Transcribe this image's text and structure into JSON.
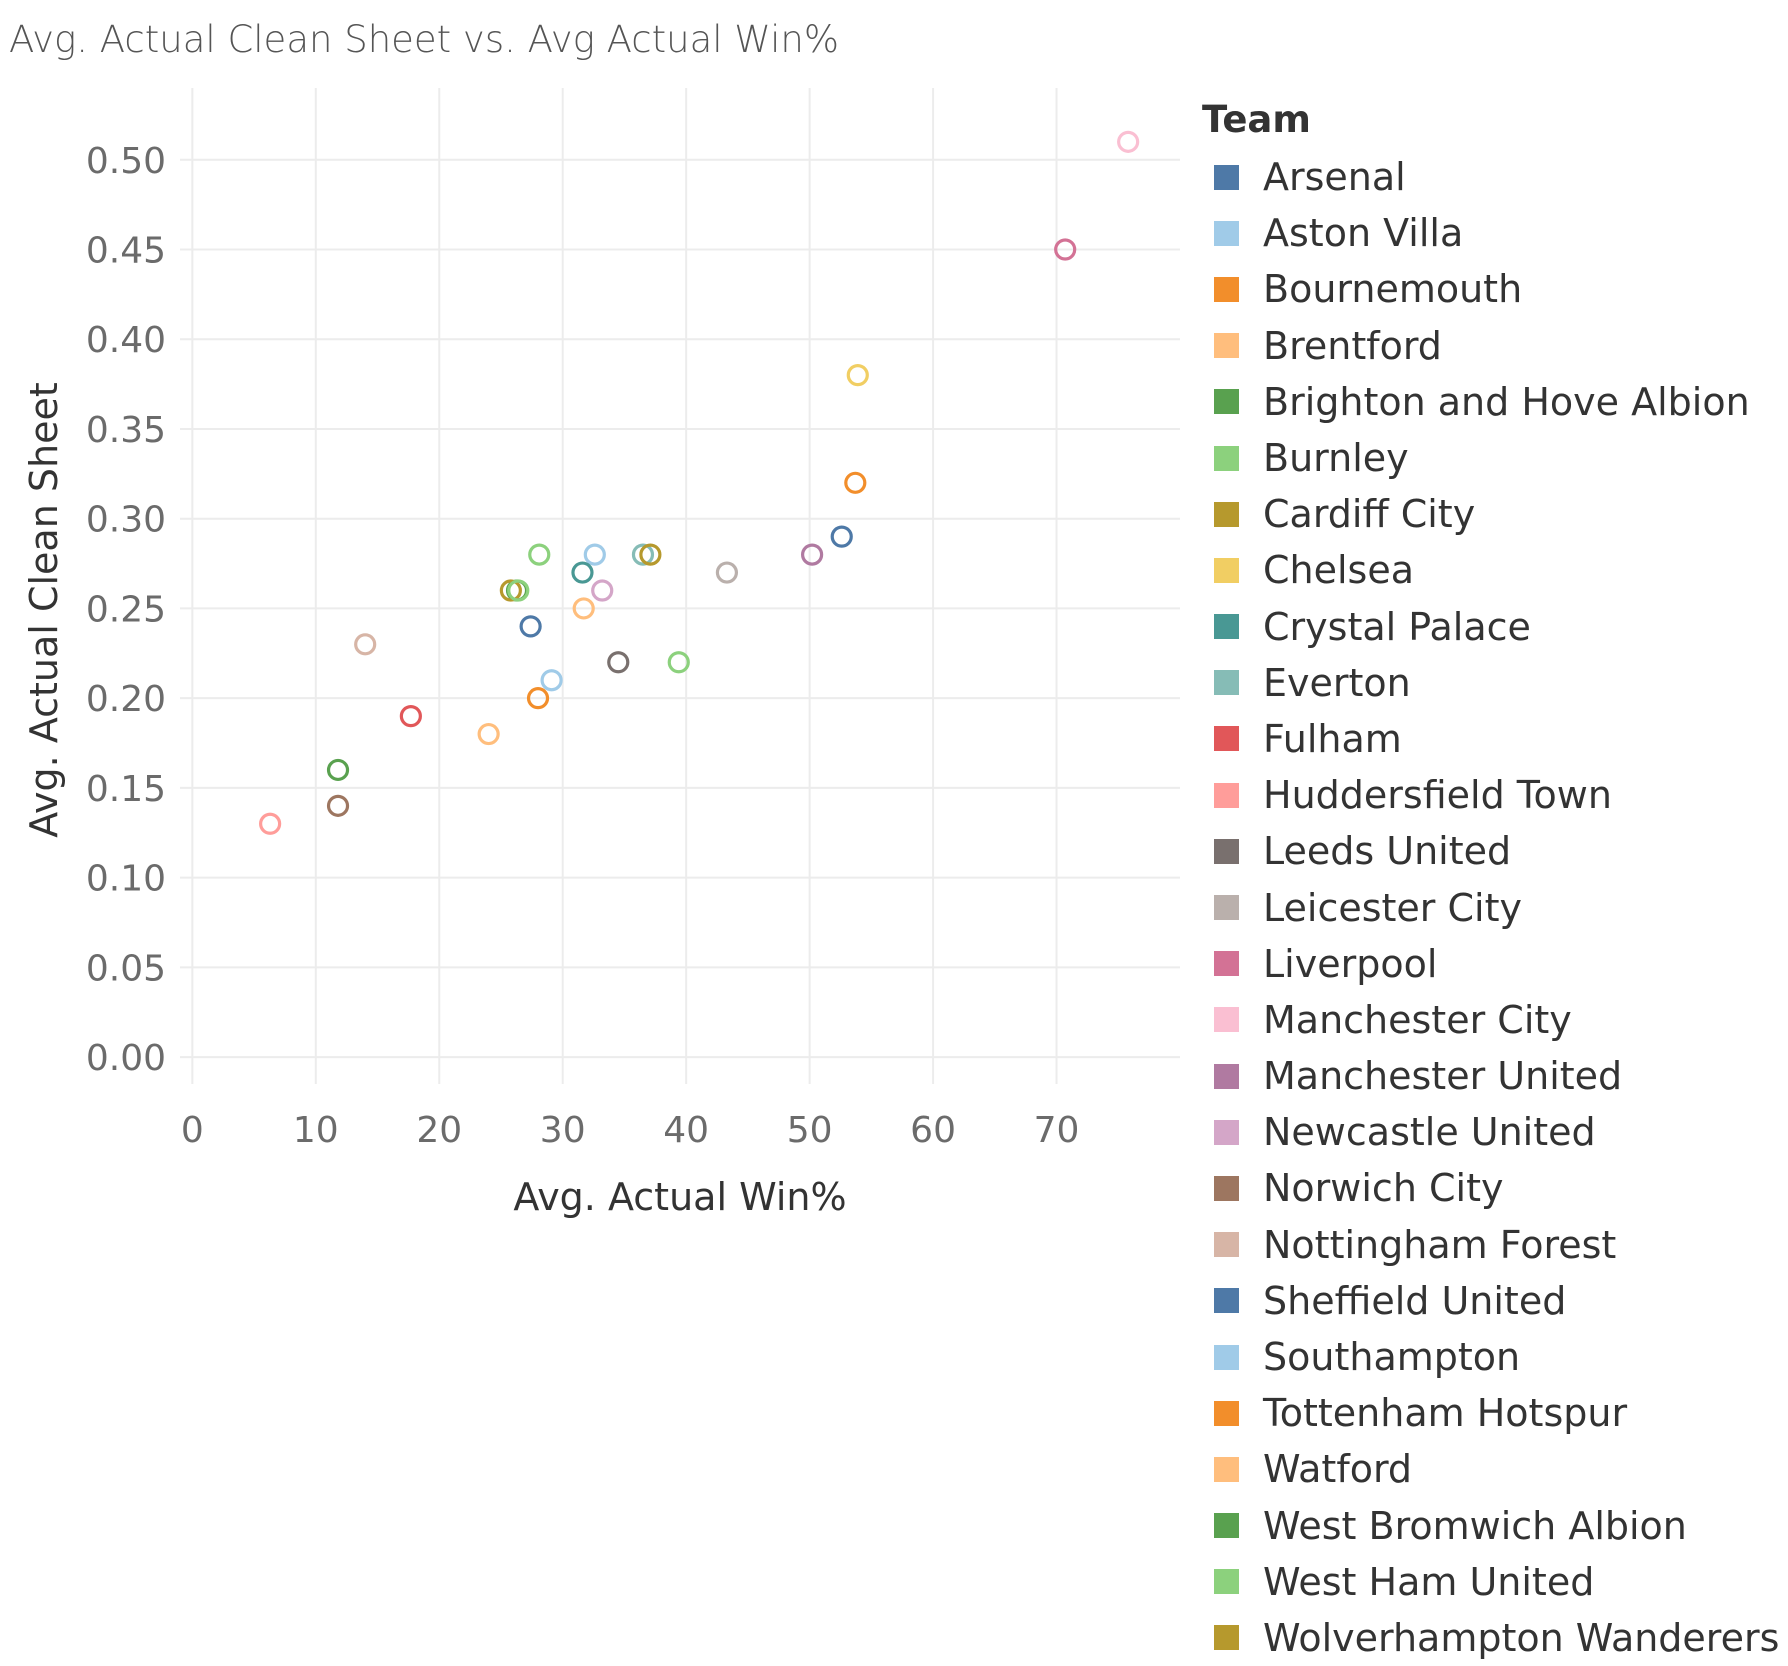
{
  "chart_data": {
    "type": "scatter",
    "title": "Avg. Actual Clean Sheet vs. Avg Actual Win%",
    "xlabel": "Avg. Actual Win%",
    "ylabel": "Avg. Actual Clean Sheet",
    "xlim": [
      -1,
      80
    ],
    "ylim": [
      -0.015,
      0.54
    ],
    "xticks": [
      0,
      10,
      20,
      30,
      40,
      50,
      60,
      70
    ],
    "yticks": [
      0.0,
      0.05,
      0.1,
      0.15,
      0.2,
      0.25,
      0.3,
      0.35,
      0.4,
      0.45,
      0.5
    ],
    "ytick_labels": [
      "0.00",
      "0.05",
      "0.10",
      "0.15",
      "0.20",
      "0.25",
      "0.30",
      "0.35",
      "0.40",
      "0.45",
      "0.50"
    ],
    "grid": true,
    "legend_title": "Team",
    "legend_position": "right",
    "series": [
      {
        "name": "Arsenal",
        "color": "#4e79a7",
        "points": [
          [
            52.6,
            0.29
          ]
        ]
      },
      {
        "name": "Aston Villa",
        "color": "#a0cbe8",
        "points": [
          [
            32.6,
            0.28
          ]
        ]
      },
      {
        "name": "Bournemouth",
        "color": "#f28e2b",
        "points": [
          [
            28.0,
            0.2
          ]
        ]
      },
      {
        "name": "Brentford",
        "color": "#ffbe7d",
        "points": [
          [
            24.0,
            0.18
          ]
        ]
      },
      {
        "name": "Brighton and Hove Albion",
        "color": "#59a14f",
        "points": [
          [
            26.3,
            0.26
          ]
        ]
      },
      {
        "name": "Burnley",
        "color": "#8cd17d",
        "points": [
          [
            28.1,
            0.28
          ],
          [
            39.4,
            0.22
          ]
        ]
      },
      {
        "name": "Cardiff City",
        "color": "#b6992d",
        "points": [
          [
            25.8,
            0.26
          ]
        ]
      },
      {
        "name": "Chelsea",
        "color": "#f1ce63",
        "points": [
          [
            53.9,
            0.38
          ]
        ]
      },
      {
        "name": "Crystal Palace",
        "color": "#499894",
        "points": [
          [
            31.6,
            0.27
          ]
        ]
      },
      {
        "name": "Everton",
        "color": "#86bcb6",
        "points": [
          [
            36.5,
            0.28
          ]
        ]
      },
      {
        "name": "Fulham",
        "color": "#e15759",
        "points": [
          [
            17.7,
            0.19
          ]
        ]
      },
      {
        "name": "Huddersfield Town",
        "color": "#ff9d9a",
        "points": [
          [
            6.3,
            0.13
          ]
        ]
      },
      {
        "name": "Leeds United",
        "color": "#79706e",
        "points": [
          [
            34.5,
            0.22
          ]
        ]
      },
      {
        "name": "Leicester City",
        "color": "#bab0ac",
        "points": [
          [
            43.3,
            0.27
          ]
        ]
      },
      {
        "name": "Liverpool",
        "color": "#d37295",
        "points": [
          [
            70.7,
            0.45
          ]
        ]
      },
      {
        "name": "Manchester City",
        "color": "#fabfd2",
        "points": [
          [
            75.8,
            0.51
          ]
        ]
      },
      {
        "name": "Manchester United",
        "color": "#b07aa1",
        "points": [
          [
            50.2,
            0.28
          ]
        ]
      },
      {
        "name": "Newcastle United",
        "color": "#d4a6c8",
        "points": [
          [
            33.2,
            0.26
          ]
        ]
      },
      {
        "name": "Norwich City",
        "color": "#9d7660",
        "points": [
          [
            11.8,
            0.14
          ]
        ]
      },
      {
        "name": "Nottingham Forest",
        "color": "#d7b5a6",
        "points": [
          [
            14.0,
            0.23
          ]
        ]
      },
      {
        "name": "Sheffield United",
        "color": "#4e79a7",
        "points": [
          [
            27.4,
            0.24
          ]
        ]
      },
      {
        "name": "Southampton",
        "color": "#a0cbe8",
        "points": [
          [
            29.1,
            0.21
          ]
        ]
      },
      {
        "name": "Tottenham Hotspur",
        "color": "#f28e2b",
        "points": [
          [
            53.7,
            0.32
          ]
        ]
      },
      {
        "name": "Watford",
        "color": "#ffbe7d",
        "points": [
          [
            31.7,
            0.25
          ]
        ]
      },
      {
        "name": "West Bromwich Albion",
        "color": "#59a14f",
        "points": [
          [
            11.8,
            0.16
          ]
        ]
      },
      {
        "name": "West Ham United",
        "color": "#8cd17d",
        "points": [
          [
            26.4,
            0.26
          ]
        ]
      },
      {
        "name": "Wolverhampton Wanderers",
        "color": "#b6992d",
        "points": [
          [
            37.1,
            0.28
          ]
        ]
      }
    ]
  }
}
